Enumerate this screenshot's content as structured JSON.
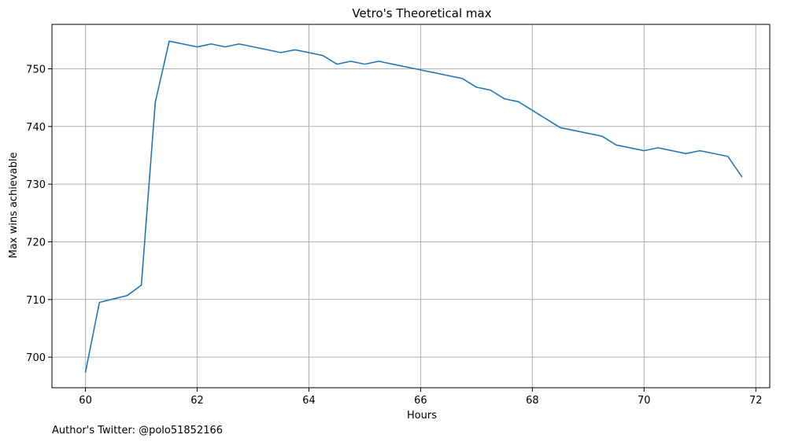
{
  "chart_data": {
    "type": "line",
    "title": "Vetro's Theoretical max",
    "xlabel": "Hours",
    "ylabel": "Max wins achievable",
    "xlim": [
      59.4,
      72.25
    ],
    "ylim": [
      694.7,
      757.7
    ],
    "xticks": [
      60,
      62,
      64,
      66,
      68,
      70,
      72
    ],
    "yticks": [
      700,
      710,
      720,
      730,
      740,
      750
    ],
    "grid": true,
    "color": "#1f77b4",
    "series": [
      {
        "x": [
          60.0,
          60.25,
          60.75,
          61.0,
          61.25,
          61.5,
          62.0,
          62.25,
          62.5,
          62.75,
          63.5,
          63.75,
          64.25,
          64.5,
          64.75,
          65.0,
          65.25,
          66.75,
          67.0,
          67.25,
          67.5,
          67.75,
          68.5,
          69.25,
          69.5,
          70.0,
          70.25,
          70.75,
          71.0,
          71.5,
          71.75
        ],
        "y": [
          697.4,
          709.5,
          710.7,
          712.5,
          744.2,
          754.8,
          753.8,
          754.3,
          753.8,
          754.3,
          752.8,
          753.3,
          752.3,
          750.8,
          751.3,
          750.8,
          751.3,
          748.3,
          746.8,
          746.3,
          744.8,
          744.3,
          739.8,
          738.3,
          736.8,
          735.8,
          736.3,
          735.3,
          735.8,
          734.8,
          731.3
        ]
      }
    ]
  },
  "footnote": "Author's Twitter: @polo51852166"
}
